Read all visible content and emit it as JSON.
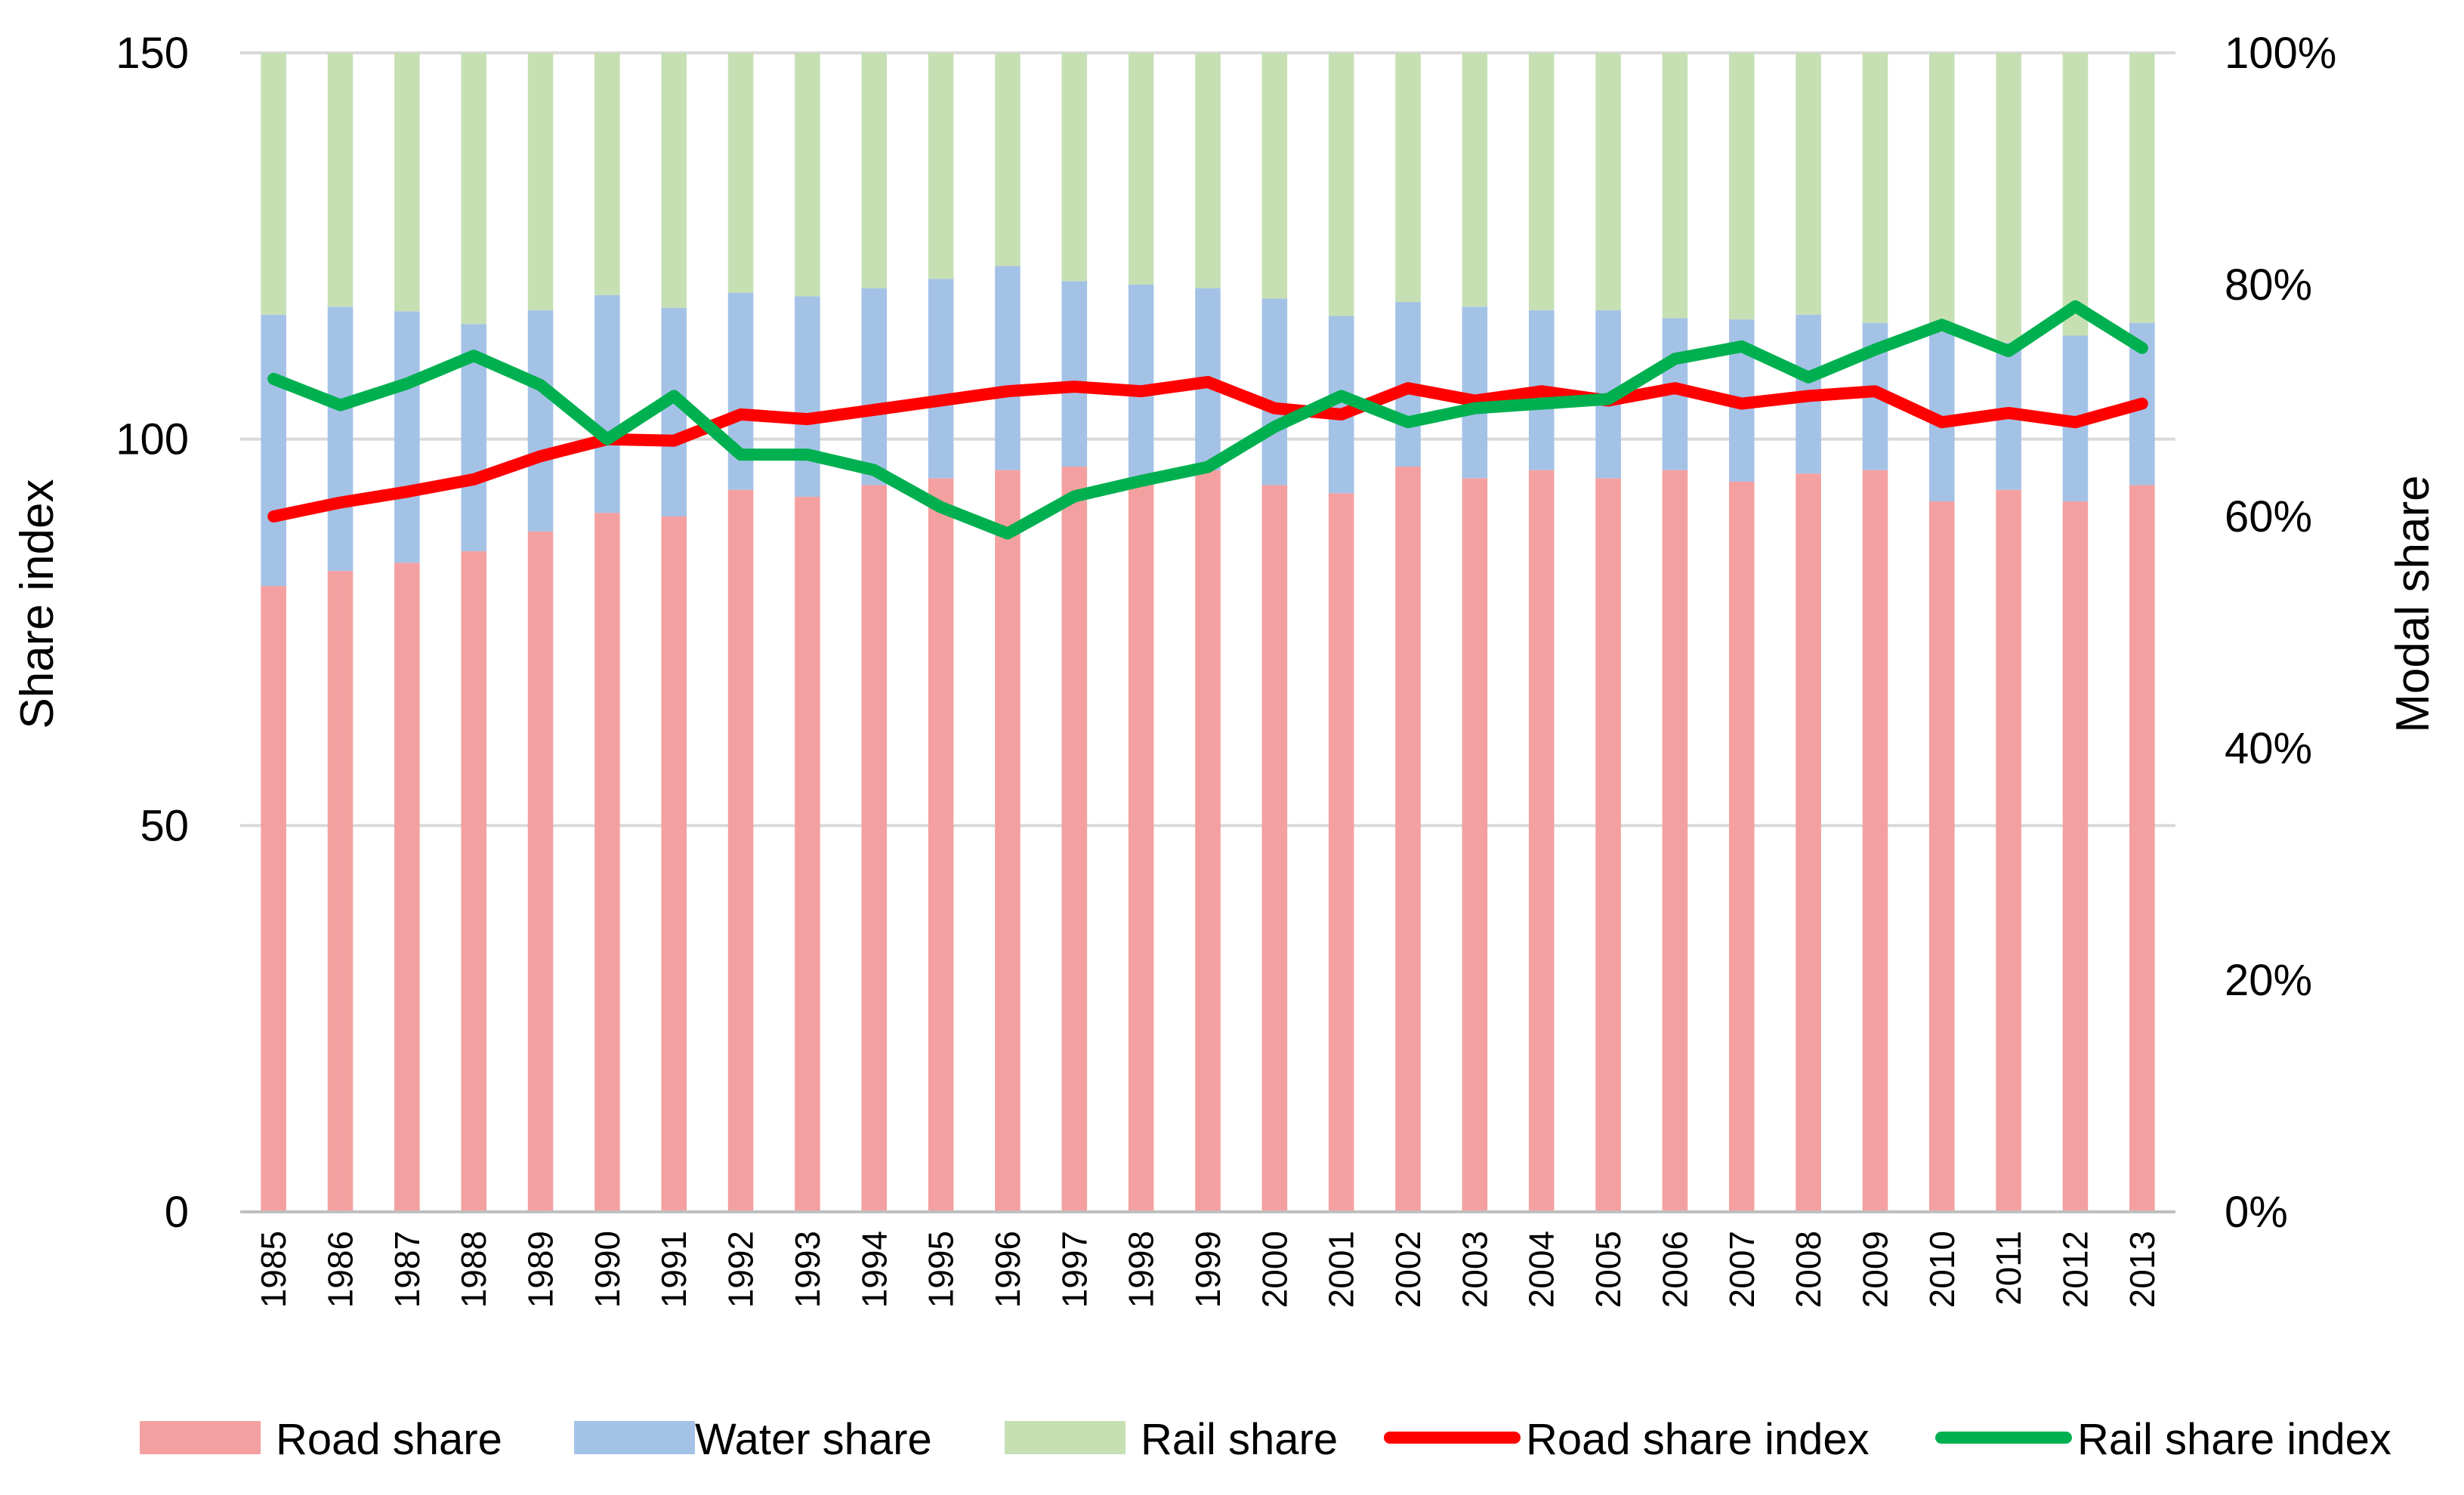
{
  "chart_data": {
    "type": "bar",
    "subtype": "stacked-percent-bars-with-lines",
    "title": "",
    "categories": [
      "1985",
      "1986",
      "1987",
      "1988",
      "1989",
      "1990",
      "1991",
      "1992",
      "1993",
      "1994",
      "1995",
      "1996",
      "1997",
      "1998",
      "1999",
      "2000",
      "2001",
      "2002",
      "2003",
      "2004",
      "2005",
      "2006",
      "2007",
      "2008",
      "2009",
      "2010",
      "2011",
      "2012",
      "2013"
    ],
    "left_axis": {
      "label": "Share index",
      "ylim": [
        0,
        150
      ],
      "ticks": [
        0,
        50,
        100,
        150
      ],
      "tick_labels": [
        "0",
        "50",
        "100",
        "150"
      ]
    },
    "right_axis": {
      "label": "Modal share",
      "ylim": [
        0,
        100
      ],
      "ticks": [
        0,
        20,
        40,
        60,
        80,
        100
      ],
      "tick_labels": [
        "0%",
        "20%",
        "40%",
        "60%",
        "80%",
        "100%"
      ]
    },
    "grid": true,
    "legend_position": "bottom",
    "series": [
      {
        "name": "Road share",
        "kind": "bar",
        "axis": "right",
        "color": "#f4a0a0",
        "values": [
          54.0,
          55.3,
          56.0,
          57.0,
          58.7,
          60.3,
          60.0,
          62.3,
          61.7,
          62.7,
          63.3,
          64.0,
          64.3,
          63.3,
          64.0,
          62.7,
          62.0,
          64.3,
          63.3,
          64.0,
          63.3,
          64.0,
          63.0,
          63.7,
          64.0,
          61.3,
          62.3,
          61.3,
          62.7
        ]
      },
      {
        "name": "Water share",
        "kind": "bar",
        "axis": "right",
        "color": "#a4c2e6",
        "values": [
          23.4,
          22.8,
          21.7,
          19.6,
          19.1,
          18.8,
          18.0,
          17.0,
          17.3,
          17.0,
          17.2,
          17.6,
          16.0,
          16.7,
          15.7,
          16.1,
          15.3,
          14.2,
          14.8,
          13.8,
          14.5,
          13.1,
          14.0,
          13.7,
          12.7,
          14.6,
          12.7,
          14.3,
          14.0
        ]
      },
      {
        "name": "Rail share",
        "kind": "bar",
        "axis": "right",
        "color": "#c6e0b4",
        "values": [
          22.6,
          21.9,
          22.3,
          23.4,
          22.2,
          20.9,
          22.0,
          20.7,
          21.0,
          20.3,
          19.5,
          18.4,
          19.7,
          20.0,
          20.3,
          21.2,
          22.7,
          21.5,
          21.9,
          22.2,
          22.2,
          22.9,
          23.0,
          22.6,
          23.3,
          24.1,
          25.0,
          24.4,
          23.3
        ]
      },
      {
        "name": "Road share index",
        "kind": "line",
        "axis": "left",
        "color": "#ff0000",
        "values": [
          90.0,
          91.8,
          93.2,
          94.8,
          97.8,
          100.0,
          99.8,
          103.2,
          102.6,
          103.8,
          105.0,
          106.2,
          106.8,
          106.2,
          107.4,
          104.0,
          103.2,
          106.6,
          105.0,
          106.2,
          105.0,
          106.6,
          104.6,
          105.6,
          106.2,
          102.2,
          103.4,
          102.2,
          104.6
        ]
      },
      {
        "name": "Rail share index",
        "kind": "line",
        "axis": "left",
        "color": "#00b050",
        "values": [
          107.8,
          104.4,
          107.2,
          110.8,
          107.0,
          100.0,
          105.6,
          98.0,
          98.0,
          96.0,
          91.2,
          87.8,
          92.6,
          94.6,
          96.4,
          101.6,
          105.6,
          102.2,
          104.0,
          104.6,
          105.2,
          110.4,
          112.0,
          108.0,
          111.6,
          114.8,
          111.4,
          117.2,
          111.8
        ]
      }
    ]
  }
}
